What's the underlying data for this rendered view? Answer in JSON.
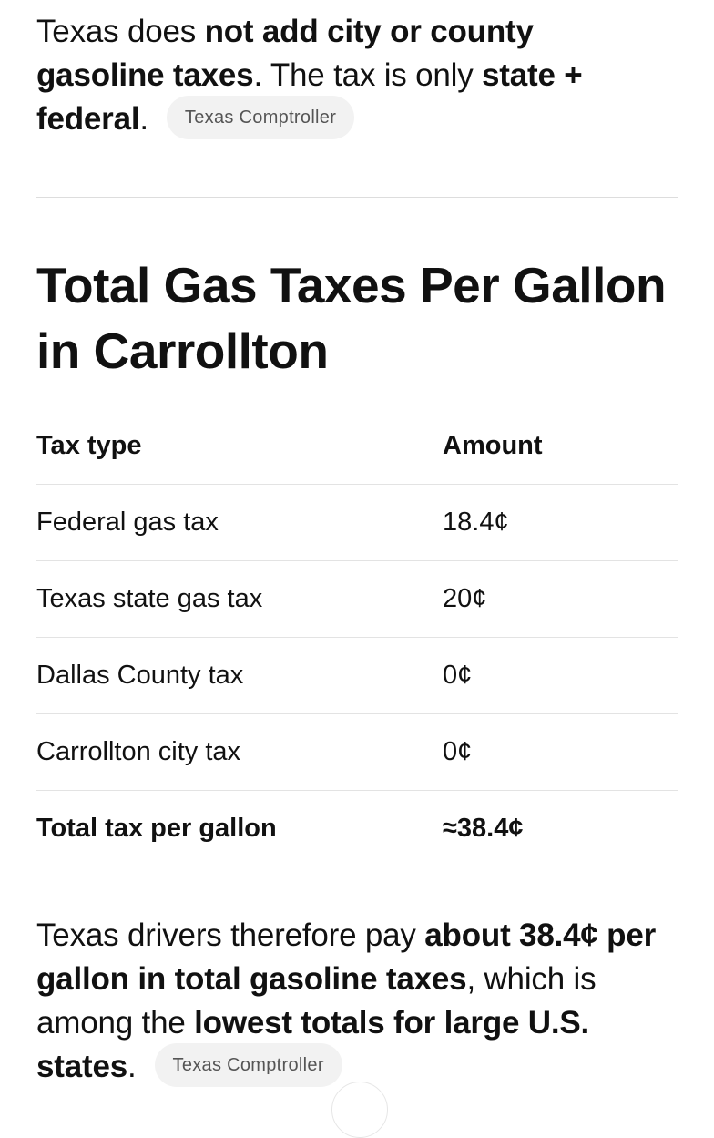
{
  "intro": {
    "seg1": "Texas does ",
    "seg2_bold": "not add city or county gasoline taxes",
    "seg3": ". The tax is only ",
    "seg4_bold": "state + federal",
    "seg5": ".",
    "source": "Texas Comptroller"
  },
  "heading": "Total Gas Taxes Per Gallon in Carrollton",
  "table": {
    "headers": [
      "Tax type",
      "Amount"
    ],
    "rows": [
      [
        "Federal gas tax",
        "18.4¢"
      ],
      [
        "Texas state gas tax",
        "20¢"
      ],
      [
        "Dallas County tax",
        "0¢"
      ],
      [
        "Carrollton city tax",
        "0¢"
      ]
    ],
    "total": [
      "Total tax per gallon",
      "≈38.4¢"
    ]
  },
  "summary": {
    "seg1": "Texas drivers therefore pay ",
    "seg2_bold": "about 38.4¢ per gallon in total gasoline taxes",
    "seg3": ", which is among the ",
    "seg4_bold": "lowest totals for large U.S. states",
    "seg5": ".",
    "source": "Texas Comptroller"
  }
}
